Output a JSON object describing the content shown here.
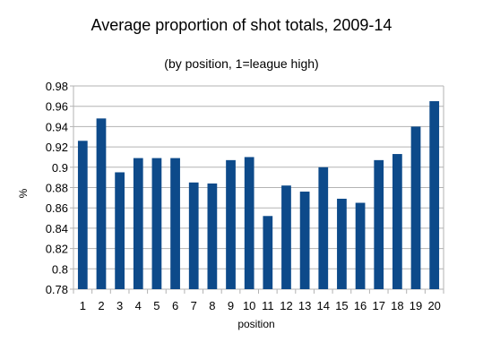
{
  "chart_data": {
    "type": "bar",
    "title": "Average proportion of shot totals, 2009-14",
    "subtitle": "(by position, 1=league high)",
    "xlabel": "position",
    "ylabel": "%",
    "categories": [
      "1",
      "2",
      "3",
      "4",
      "5",
      "6",
      "7",
      "8",
      "9",
      "10",
      "11",
      "12",
      "13",
      "14",
      "15",
      "16",
      "17",
      "18",
      "19",
      "20"
    ],
    "values": [
      0.926,
      0.948,
      0.895,
      0.909,
      0.909,
      0.909,
      0.885,
      0.884,
      0.907,
      0.91,
      0.852,
      0.882,
      0.876,
      0.9,
      0.869,
      0.865,
      0.907,
      0.913,
      0.94,
      0.965
    ],
    "ylim": [
      0.78,
      0.98
    ],
    "yticks": [
      "0.78",
      "0.8",
      "0.82",
      "0.84",
      "0.86",
      "0.88",
      "0.9",
      "0.92",
      "0.94",
      "0.96",
      "0.98"
    ],
    "grid": true,
    "legend": "none",
    "bar_color": "#0d4a8a"
  }
}
